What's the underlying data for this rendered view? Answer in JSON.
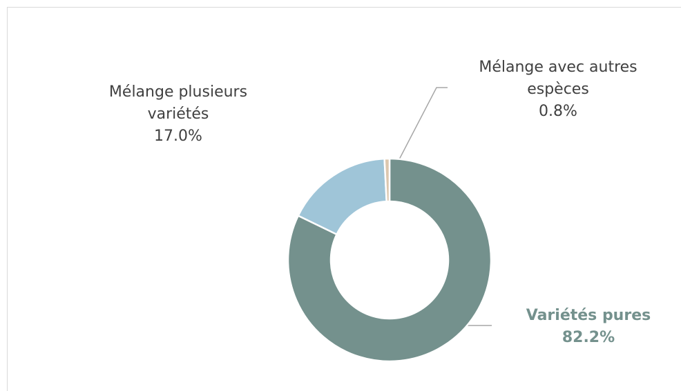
{
  "chart_data": {
    "type": "donut",
    "categories": [
      "Variétés pures",
      "Mélange plusieurs variétés",
      "Mélange avec autres espèces"
    ],
    "values": [
      82.2,
      17.0,
      0.8
    ],
    "value_labels": [
      "82.2%",
      "17.0%",
      "0.8%"
    ],
    "colors": [
      "#74918d",
      "#9fc5d8",
      "#dcc7ae"
    ]
  }
}
